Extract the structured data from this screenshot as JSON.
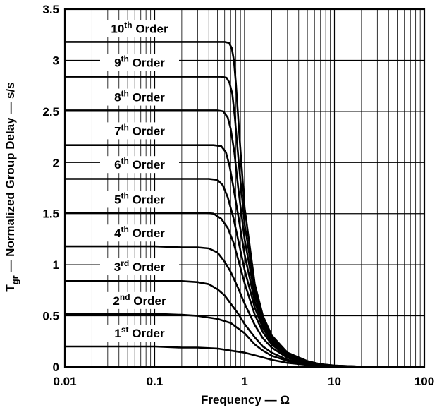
{
  "chart_data": {
    "type": "line",
    "title": "",
    "xlabel": "Frequency — Ω",
    "ylabel": {
      "main": "T",
      "sub": "gr",
      "rest": " — Normalized Group Delay — s/s"
    },
    "x_scale": "log",
    "xlim": [
      0.01,
      100
    ],
    "ylim": [
      0,
      3.5
    ],
    "grid": true,
    "x_ticks": [
      {
        "value": 0.01,
        "label": "0.01"
      },
      {
        "value": 0.1,
        "label": "0.1"
      },
      {
        "value": 1,
        "label": "1"
      },
      {
        "value": 10,
        "label": "10"
      },
      {
        "value": 100,
        "label": "100"
      }
    ],
    "y_ticks": [
      {
        "value": 0,
        "label": "0"
      },
      {
        "value": 0.5,
        "label": "0.5"
      },
      {
        "value": 1,
        "label": "1"
      },
      {
        "value": 1.5,
        "label": "1.5"
      },
      {
        "value": 2,
        "label": "2"
      },
      {
        "value": 2.5,
        "label": "2.5"
      },
      {
        "value": 3,
        "label": "3"
      },
      {
        "value": 3.5,
        "label": "3.5"
      }
    ],
    "labels": [
      {
        "num": "1",
        "sup": "st",
        "rest": " Order",
        "y": 0.33
      },
      {
        "num": "2",
        "sup": "nd",
        "rest": " Order",
        "y": 0.65
      },
      {
        "num": "3",
        "sup": "rd",
        "rest": " Order",
        "y": 0.98
      },
      {
        "num": "4",
        "sup": "th",
        "rest": " Order",
        "y": 1.31
      },
      {
        "num": "5",
        "sup": "th",
        "rest": " Order",
        "y": 1.64
      },
      {
        "num": "6",
        "sup": "th",
        "rest": " Order",
        "y": 1.98
      },
      {
        "num": "7",
        "sup": "th",
        "rest": " Order",
        "y": 2.31
      },
      {
        "num": "8",
        "sup": "th",
        "rest": " Order",
        "y": 2.64
      },
      {
        "num": "9",
        "sup": "th",
        "rest": " Order",
        "y": 2.98
      },
      {
        "num": "10",
        "sup": "th",
        "rest": " Order",
        "y": 3.31
      }
    ],
    "series": [
      {
        "x": [
          0.01,
          0.1,
          0.2,
          0.3,
          0.5,
          0.7,
          1,
          1.5,
          2,
          3,
          5,
          7,
          10,
          20,
          70
        ],
        "values": [
          0.2,
          0.2,
          0.19,
          0.19,
          0.18,
          0.16,
          0.14,
          0.1,
          0.07,
          0.04,
          0.02,
          0.01,
          0.005,
          0.002,
          0.0
        ]
      },
      {
        "x": [
          0.01,
          0.1,
          0.2,
          0.3,
          0.5,
          0.7,
          1,
          1.3,
          1.6,
          2,
          3,
          5,
          7,
          10,
          20,
          70
        ],
        "values": [
          0.52,
          0.52,
          0.51,
          0.5,
          0.47,
          0.43,
          0.33,
          0.22,
          0.16,
          0.11,
          0.06,
          0.02,
          0.01,
          0.005,
          0.002,
          0.0
        ]
      },
      {
        "x": [
          0.01,
          0.1,
          0.2,
          0.3,
          0.4,
          0.5,
          0.6,
          0.7,
          0.85,
          1,
          1.3,
          1.6,
          2,
          3,
          5,
          7,
          10,
          20,
          70
        ],
        "values": [
          0.84,
          0.84,
          0.84,
          0.83,
          0.81,
          0.76,
          0.7,
          0.62,
          0.52,
          0.42,
          0.29,
          0.2,
          0.14,
          0.07,
          0.03,
          0.015,
          0.007,
          0.002,
          0.0
        ]
      },
      {
        "x": [
          0.01,
          0.1,
          0.2,
          0.3,
          0.4,
          0.5,
          0.6,
          0.7,
          0.85,
          1,
          1.3,
          1.6,
          2,
          3,
          5,
          7,
          10,
          20,
          70
        ],
        "values": [
          1.18,
          1.18,
          1.17,
          1.17,
          1.16,
          1.12,
          1.03,
          0.93,
          0.77,
          0.62,
          0.41,
          0.28,
          0.19,
          0.09,
          0.035,
          0.017,
          0.008,
          0.002,
          0.0
        ]
      },
      {
        "x": [
          0.01,
          0.2,
          0.35,
          0.45,
          0.55,
          0.65,
          0.75,
          0.85,
          1,
          1.3,
          1.6,
          2,
          3,
          5,
          7,
          10,
          20,
          70
        ],
        "values": [
          1.51,
          1.51,
          1.51,
          1.5,
          1.45,
          1.36,
          1.22,
          1.05,
          0.82,
          0.51,
          0.34,
          0.22,
          0.1,
          0.04,
          0.019,
          0.009,
          0.002,
          0.0
        ]
      },
      {
        "x": [
          0.01,
          0.2,
          0.4,
          0.5,
          0.57,
          0.65,
          0.75,
          0.85,
          1,
          1.3,
          1.6,
          2,
          3,
          5,
          7,
          10,
          20,
          70
        ],
        "values": [
          1.84,
          1.84,
          1.84,
          1.83,
          1.78,
          1.66,
          1.46,
          1.24,
          0.95,
          0.58,
          0.38,
          0.24,
          0.11,
          0.045,
          0.021,
          0.01,
          0.003,
          0.0
        ]
      },
      {
        "x": [
          0.01,
          0.2,
          0.45,
          0.55,
          0.62,
          0.68,
          0.75,
          0.85,
          1,
          1.3,
          1.6,
          2,
          3,
          5,
          7,
          10,
          20,
          70
        ],
        "values": [
          2.17,
          2.17,
          2.17,
          2.16,
          2.1,
          1.97,
          1.76,
          1.48,
          1.1,
          0.64,
          0.41,
          0.26,
          0.12,
          0.05,
          0.023,
          0.011,
          0.003,
          0.0
        ]
      },
      {
        "x": [
          0.01,
          0.2,
          0.5,
          0.58,
          0.65,
          0.7,
          0.77,
          0.85,
          1,
          1.3,
          1.6,
          2,
          3,
          5,
          7,
          10,
          20,
          70
        ],
        "values": [
          2.51,
          2.51,
          2.51,
          2.5,
          2.44,
          2.33,
          2.1,
          1.75,
          1.25,
          0.7,
          0.44,
          0.28,
          0.13,
          0.052,
          0.025,
          0.012,
          0.003,
          0.0
        ]
      },
      {
        "x": [
          0.01,
          0.2,
          0.55,
          0.63,
          0.68,
          0.73,
          0.78,
          0.86,
          1,
          1.3,
          1.6,
          2,
          3,
          5,
          7,
          10,
          20,
          70
        ],
        "values": [
          2.84,
          2.84,
          2.84,
          2.83,
          2.78,
          2.67,
          2.44,
          2.01,
          1.4,
          0.76,
          0.47,
          0.3,
          0.14,
          0.055,
          0.026,
          0.013,
          0.003,
          0.0
        ]
      },
      {
        "x": [
          0.01,
          0.2,
          0.6,
          0.67,
          0.72,
          0.76,
          0.8,
          0.87,
          1,
          1.3,
          1.6,
          2,
          3,
          5,
          7,
          10,
          20,
          70
        ],
        "values": [
          3.18,
          3.18,
          3.18,
          3.17,
          3.12,
          3.0,
          2.78,
          2.3,
          1.56,
          0.81,
          0.5,
          0.31,
          0.14,
          0.057,
          0.027,
          0.013,
          0.003,
          0.0
        ]
      }
    ]
  }
}
